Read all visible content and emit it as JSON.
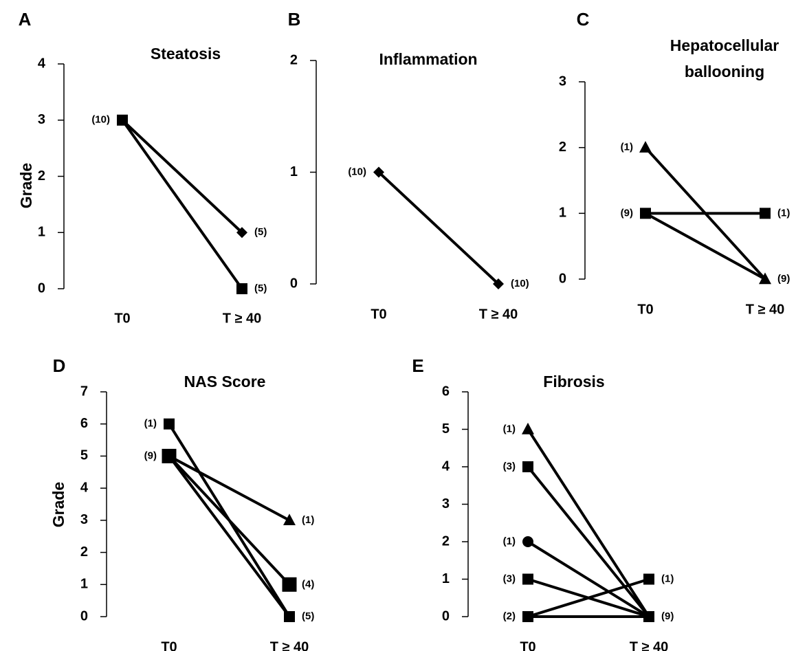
{
  "chart_data": [
    {
      "type": "line",
      "panel": "A",
      "title": "Steatosis",
      "ylabel": "Grade",
      "ylim": [
        0,
        4
      ],
      "yticks": [
        "0",
        "1",
        "2",
        "3",
        "4"
      ],
      "categories": [
        "T0",
        "T ≥ 40"
      ],
      "lines": [
        {
          "from": 3,
          "to": 1
        },
        {
          "from": 3,
          "to": 0
        }
      ],
      "markers": [
        {
          "cat": 0,
          "y": 3,
          "shape": "square",
          "label": "(10)"
        },
        {
          "cat": 1,
          "y": 1,
          "shape": "diamond",
          "label": "(5)"
        },
        {
          "cat": 1,
          "y": 0,
          "shape": "square",
          "label": "(5)"
        }
      ]
    },
    {
      "type": "line",
      "panel": "B",
      "title": "Inflammation",
      "ylabel": "",
      "ylim": [
        0,
        2
      ],
      "yticks": [
        "0",
        "1",
        "2"
      ],
      "categories": [
        "T0",
        "T ≥ 40"
      ],
      "lines": [
        {
          "from": 1,
          "to": 0
        }
      ],
      "markers": [
        {
          "cat": 0,
          "y": 1,
          "shape": "diamond",
          "label": "(10)"
        },
        {
          "cat": 1,
          "y": 0,
          "shape": "diamond",
          "label": "(10)"
        }
      ]
    },
    {
      "type": "line",
      "panel": "C",
      "title": [
        "Hepatocellular",
        "ballooning"
      ],
      "ylabel": "",
      "ylim": [
        0,
        3
      ],
      "yticks": [
        "0",
        "1",
        "2",
        "3"
      ],
      "categories": [
        "T0",
        "T ≥ 40"
      ],
      "lines": [
        {
          "from": 2,
          "to": 0
        },
        {
          "from": 1,
          "to": 1
        },
        {
          "from": 1,
          "to": 0
        }
      ],
      "markers": [
        {
          "cat": 0,
          "y": 2,
          "shape": "triangle",
          "label": "(1)"
        },
        {
          "cat": 0,
          "y": 1,
          "shape": "square",
          "label": "(9)"
        },
        {
          "cat": 1,
          "y": 1,
          "shape": "square",
          "label": "(1)"
        },
        {
          "cat": 1,
          "y": 0,
          "shape": "triangle",
          "label": "(9)"
        }
      ]
    },
    {
      "type": "line",
      "panel": "D",
      "title": "NAS Score",
      "ylabel": "Grade",
      "ylim": [
        0,
        7
      ],
      "yticks": [
        "0",
        "1",
        "2",
        "3",
        "4",
        "5",
        "6",
        "7"
      ],
      "categories": [
        "T0",
        "T ≥ 40"
      ],
      "lines": [
        {
          "from": 6,
          "to": 0
        },
        {
          "from": 5,
          "to": 3
        },
        {
          "from": 5,
          "to": 1
        },
        {
          "from": 5,
          "to": 0
        }
      ],
      "markers": [
        {
          "cat": 0,
          "y": 6,
          "shape": "square",
          "label": "(1)"
        },
        {
          "cat": 0,
          "y": 5,
          "shape": "square-large",
          "label": "(9)"
        },
        {
          "cat": 1,
          "y": 3,
          "shape": "triangle",
          "label": "(1)"
        },
        {
          "cat": 1,
          "y": 1,
          "shape": "square-large",
          "label": "(4)"
        },
        {
          "cat": 1,
          "y": 0,
          "shape": "square",
          "label": "(5)"
        }
      ]
    },
    {
      "type": "line",
      "panel": "E",
      "title": "Fibrosis",
      "ylabel": "",
      "ylim": [
        0,
        6
      ],
      "yticks": [
        "0",
        "1",
        "2",
        "3",
        "4",
        "5",
        "6"
      ],
      "categories": [
        "T0",
        "T ≥ 40"
      ],
      "lines": [
        {
          "from": 5,
          "to": 0
        },
        {
          "from": 4,
          "to": 0
        },
        {
          "from": 2,
          "to": 0
        },
        {
          "from": 1,
          "to": 0
        },
        {
          "from": 0,
          "to": 1
        },
        {
          "from": 0,
          "to": 0
        }
      ],
      "markers": [
        {
          "cat": 0,
          "y": 5,
          "shape": "triangle",
          "label": "(1)"
        },
        {
          "cat": 0,
          "y": 4,
          "shape": "square",
          "label": "(3)"
        },
        {
          "cat": 0,
          "y": 2,
          "shape": "circle",
          "label": "(1)"
        },
        {
          "cat": 0,
          "y": 1,
          "shape": "square",
          "label": "(3)"
        },
        {
          "cat": 0,
          "y": 0,
          "shape": "square",
          "label": "(2)"
        },
        {
          "cat": 1,
          "y": 1,
          "shape": "square",
          "label": "(1)"
        },
        {
          "cat": 1,
          "y": 0,
          "shape": "square",
          "label": "(9)"
        }
      ]
    }
  ]
}
